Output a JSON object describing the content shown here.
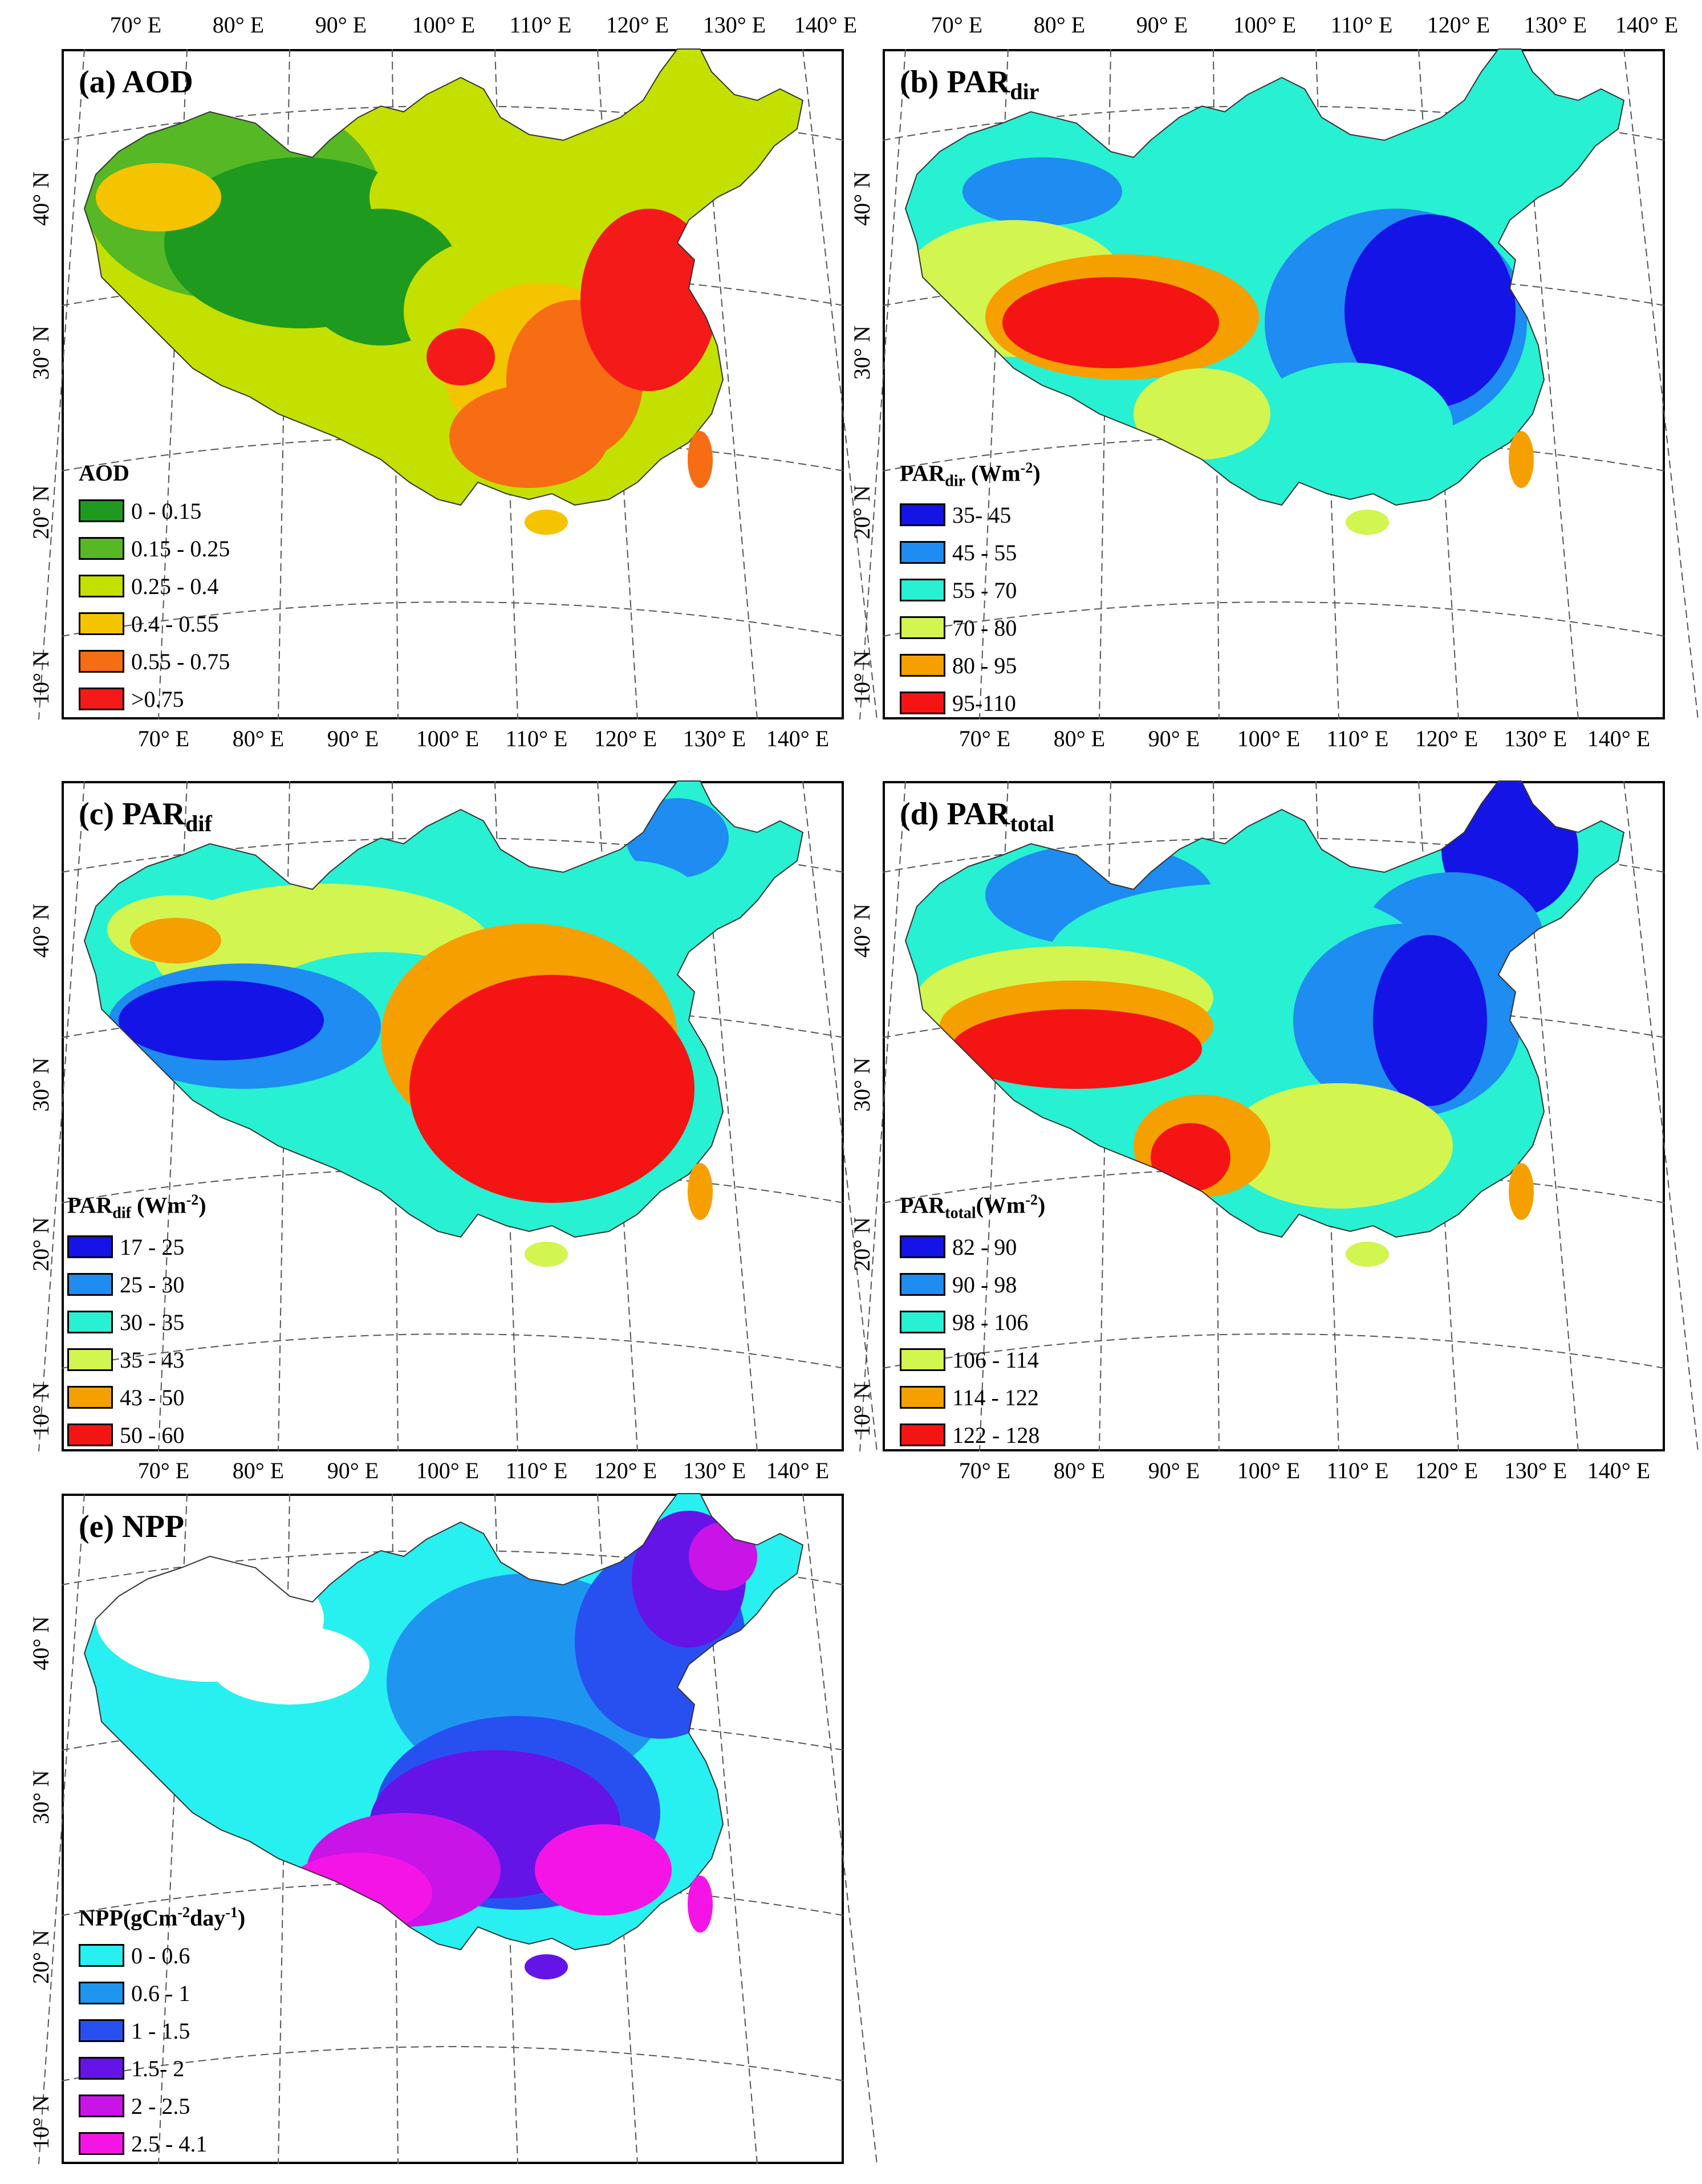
{
  "lon_ticks": [
    "70° E",
    "80° E",
    "90° E",
    "100° E",
    "110° E",
    "120° E",
    "130° E",
    "140° E"
  ],
  "lat_ticks": [
    "10° N",
    "20° N",
    "30° N",
    "40° N"
  ],
  "panels": [
    {
      "id": "aod",
      "title_main": "(a) AOD",
      "title_sub": "",
      "legend_title_main": "AOD",
      "legend_title_sub": "",
      "legend_title_unit": "",
      "classes": [
        {
          "label": "0 - 0.15",
          "color": "#1e9a1e"
        },
        {
          "label": "0.15 - 0.25",
          "color": "#55b824"
        },
        {
          "label": "0.25 - 0.4",
          "color": "#c4e000"
        },
        {
          "label": "0.4 - 0.55",
          "color": "#f5c400"
        },
        {
          "label": "0.55 - 0.75",
          "color": "#f76d14"
        },
        {
          "label": ">0.75",
          "color": "#f51a1a"
        }
      ]
    },
    {
      "id": "pardir",
      "title_main": "(b) PAR",
      "title_sub": "dir",
      "legend_title_main": "PAR",
      "legend_title_sub": "dir",
      "legend_title_unit": " (Wm",
      "legend_title_sup": "-2",
      "legend_title_end": ")",
      "classes": [
        {
          "label": "35- 45",
          "color": "#1414e6"
        },
        {
          "label": "45 - 55",
          "color": "#1e8cf0"
        },
        {
          "label": "55 - 70",
          "color": "#28f0d2"
        },
        {
          "label": "70 - 80",
          "color": "#d2f550"
        },
        {
          "label": "80 - 95",
          "color": "#f5a000"
        },
        {
          "label": "95-110",
          "color": "#f51414"
        }
      ]
    },
    {
      "id": "pardif",
      "title_main": "(c) PAR",
      "title_sub": "dif",
      "legend_title_main": "PAR",
      "legend_title_sub": "dif",
      "legend_title_unit": " (Wm",
      "legend_title_sup": "-2",
      "legend_title_end": ")",
      "classes": [
        {
          "label": "17 - 25",
          "color": "#1414e6"
        },
        {
          "label": "25 - 30",
          "color": "#1e8cf0"
        },
        {
          "label": "30 - 35",
          "color": "#28f0d2"
        },
        {
          "label": "35 - 43",
          "color": "#d2f550"
        },
        {
          "label": "43 - 50",
          "color": "#f5a000"
        },
        {
          "label": "50 - 60",
          "color": "#f51414"
        }
      ]
    },
    {
      "id": "partotal",
      "title_main": "(d) PAR",
      "title_sub": "total",
      "legend_title_main": "PAR",
      "legend_title_sub": "total",
      "legend_title_unit": "(Wm",
      "legend_title_sup": "-2",
      "legend_title_end": ")",
      "classes": [
        {
          "label": "82 - 90",
          "color": "#1414e6"
        },
        {
          "label": "90 - 98",
          "color": "#1e8cf0"
        },
        {
          "label": "98 - 106",
          "color": "#28f0d2"
        },
        {
          "label": "106 - 114",
          "color": "#d2f550"
        },
        {
          "label": "114 - 122",
          "color": "#f5a000"
        },
        {
          "label": "122 - 128",
          "color": "#f51414"
        }
      ]
    },
    {
      "id": "npp",
      "title_main": "(e) NPP",
      "title_sub": "",
      "legend_title_main": "NPP(gCm",
      "legend_title_sub": "",
      "legend_title_unit": "",
      "legend_title_sup": "-2",
      "legend_title_end": "day",
      "legend_title_sup2": "-1",
      "legend_title_close": ")",
      "classes": [
        {
          "label": "0 - 0.6",
          "color": "#28f0f0"
        },
        {
          "label": "0.6 - 1",
          "color": "#1e96f0"
        },
        {
          "label": "1 - 1.5",
          "color": "#2850f0"
        },
        {
          "label": "1.5- 2",
          "color": "#6414e6"
        },
        {
          "label": "2 - 2.5",
          "color": "#c814e6"
        },
        {
          "label": "2.5 - 4.1",
          "color": "#f514e6"
        }
      ]
    }
  ]
}
